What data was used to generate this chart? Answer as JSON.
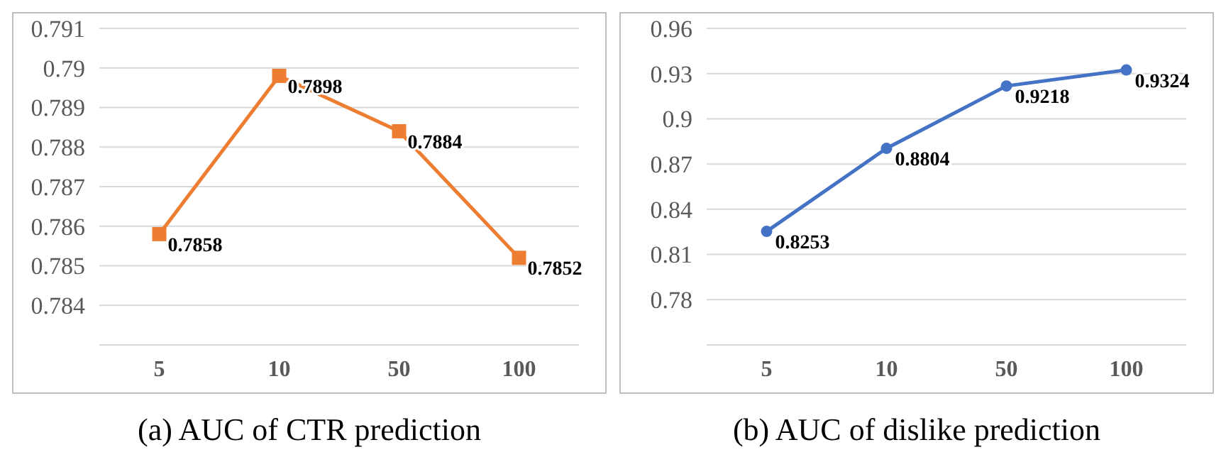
{
  "chart_data": [
    {
      "type": "line",
      "title": "(a)  AUC of CTR prediction",
      "categories": [
        "5",
        "10",
        "50",
        "100"
      ],
      "series": [
        {
          "color": "#ed7d31",
          "values": [
            0.7858,
            0.7898,
            0.7884,
            0.7852
          ]
        }
      ],
      "ylim": [
        0.783,
        0.791
      ],
      "yticks": [
        0.784,
        0.785,
        0.786,
        0.787,
        0.788,
        0.789,
        0.79,
        0.791
      ],
      "grid": "y",
      "marker": "square",
      "data_labels": true
    },
    {
      "type": "line",
      "title": "(b)  AUC of dislike prediction",
      "categories": [
        "5",
        "10",
        "50",
        "100"
      ],
      "series": [
        {
          "color": "#4472c4",
          "values": [
            0.8253,
            0.8804,
            0.9218,
            0.9324
          ]
        }
      ],
      "ylim": [
        0.75,
        0.96
      ],
      "yticks": [
        0.78,
        0.81,
        0.84,
        0.87,
        0.9,
        0.93,
        0.96
      ],
      "grid": "y",
      "marker": "circle",
      "data_labels": true
    }
  ]
}
